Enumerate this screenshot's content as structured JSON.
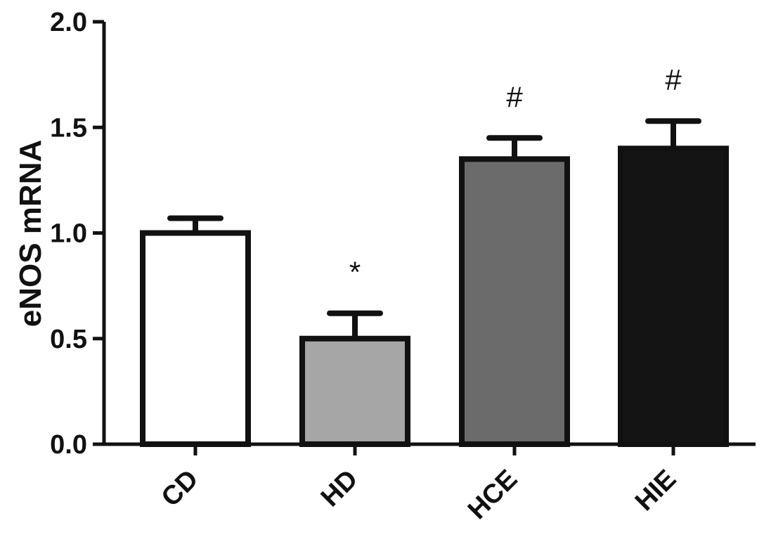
{
  "chart_data": {
    "type": "bar",
    "title": "",
    "xlabel": "",
    "ylabel": "eNOS mRNA",
    "ylim": [
      0,
      2.0
    ],
    "yticks": [
      0.0,
      0.5,
      1.0,
      1.5,
      2.0
    ],
    "ytick_labels": [
      "0.0",
      "0.5",
      "1.0",
      "1.5",
      "2.0"
    ],
    "categories": [
      "CD",
      "HD",
      "HCE",
      "HIE"
    ],
    "values": [
      1.0,
      0.5,
      1.35,
      1.4
    ],
    "errors": [
      0.07,
      0.12,
      0.1,
      0.13
    ],
    "annotations": [
      "",
      "*",
      "#",
      "#"
    ],
    "colors": [
      "#ffffff",
      "#a6a6a6",
      "#6b6b6b",
      "#141414"
    ],
    "grid": false,
    "legend": "none"
  }
}
